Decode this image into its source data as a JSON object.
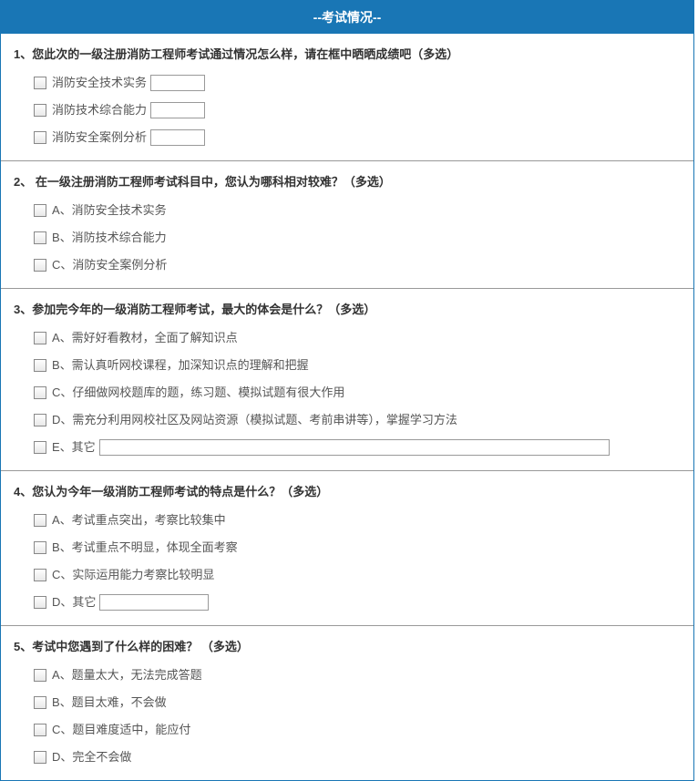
{
  "header": "--考试情况--",
  "questions": [
    {
      "title": "1、您此次的一级注册消防工程师考试通过情况怎么样，请在框中晒晒成绩吧（多选）",
      "options": [
        {
          "label": "消防安全技术实务",
          "input": "short"
        },
        {
          "label": "消防技术综合能力",
          "input": "short"
        },
        {
          "label": "消防安全案例分析",
          "input": "short"
        }
      ]
    },
    {
      "title": "2、 在一级注册消防工程师考试科目中，您认为哪科相对较难？（多选）",
      "options": [
        {
          "label": "A、消防安全技术实务"
        },
        {
          "label": "B、消防技术综合能力"
        },
        {
          "label": "C、消防安全案例分析"
        }
      ]
    },
    {
      "title": "3、参加完今年的一级消防工程师考试，最大的体会是什么？（多选）",
      "options": [
        {
          "label": "A、需好好看教材，全面了解知识点"
        },
        {
          "label": "B、需认真听网校课程，加深知识点的理解和把握"
        },
        {
          "label": "C、仔细做网校题库的题，练习题、模拟试题有很大作用"
        },
        {
          "label": "D、需充分利用网校社区及网站资源（模拟试题、考前串讲等），掌握学习方法"
        },
        {
          "label": "E、其它",
          "input": "long"
        }
      ]
    },
    {
      "title": "4、您认为今年一级消防工程师考试的特点是什么？（多选）",
      "options": [
        {
          "label": "A、考试重点突出，考察比较集中"
        },
        {
          "label": "B、考试重点不明显，体现全面考察"
        },
        {
          "label": "C、实际运用能力考察比较明显"
        },
        {
          "label": "D、其它",
          "input": "med"
        }
      ]
    },
    {
      "title": "5、考试中您遇到了什么样的困难？ （多选）",
      "options": [
        {
          "label": "A、题量太大，无法完成答题"
        },
        {
          "label": "B、题目太难，不会做"
        },
        {
          "label": "C、题目难度适中，能应付"
        },
        {
          "label": "D、完全不会做"
        }
      ]
    }
  ]
}
